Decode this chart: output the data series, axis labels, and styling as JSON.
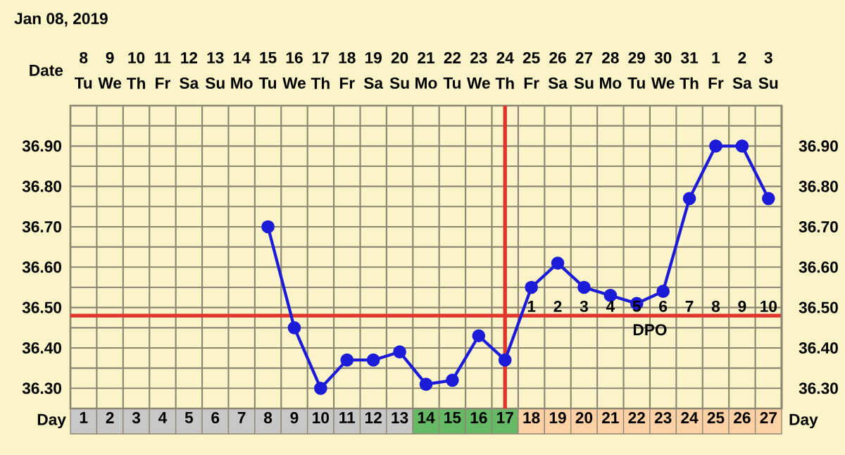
{
  "chart_data": {
    "type": "line",
    "title": "Jan 08, 2019",
    "series": [
      {
        "color": "#1c1cd8",
        "x": [
          8,
          9,
          10,
          11,
          12,
          13,
          14,
          15,
          16,
          17,
          18,
          19,
          20,
          21,
          22,
          23,
          24,
          25,
          26,
          27
        ],
        "values": [
          36.7,
          36.45,
          36.3,
          36.37,
          36.37,
          36.39,
          36.31,
          36.32,
          36.43,
          36.37,
          36.55,
          36.61,
          36.55,
          36.53,
          36.51,
          36.54,
          36.77,
          36.9,
          36.9,
          36.77
        ]
      }
    ],
    "marker": "circle",
    "line_style": "solid",
    "grid": true,
    "xlim": [
      0.5,
      27.5
    ],
    "xticks": [
      1,
      2,
      3,
      4,
      5,
      6,
      7,
      8,
      9,
      10,
      11,
      12,
      13,
      14,
      15,
      16,
      17,
      18,
      19,
      20,
      21,
      22,
      23,
      24,
      25,
      26,
      27
    ],
    "ylim": [
      36.25,
      37.0
    ],
    "yticks": [
      {
        "value": 36.25,
        "label": null
      },
      {
        "value": 36.3,
        "label": "36.30"
      },
      {
        "value": 36.35,
        "label": null
      },
      {
        "value": 36.4,
        "label": "36.40"
      },
      {
        "value": 36.45,
        "label": null
      },
      {
        "value": 36.5,
        "label": "36.50"
      },
      {
        "value": 36.55,
        "label": null
      },
      {
        "value": 36.6,
        "label": "36.60"
      },
      {
        "value": 36.65,
        "label": null
      },
      {
        "value": 36.7,
        "label": "36.70"
      },
      {
        "value": 36.75,
        "label": null
      },
      {
        "value": 36.8,
        "label": "36.80"
      },
      {
        "value": 36.85,
        "label": null
      },
      {
        "value": 36.9,
        "label": "36.90"
      },
      {
        "value": 36.95,
        "label": null
      },
      {
        "value": 37.0,
        "label": null
      }
    ],
    "y2lim": [
      36.25,
      37.0
    ],
    "y2ticks": [
      {
        "value": 36.25,
        "label": null
      },
      {
        "value": 36.3,
        "label": "36.30"
      },
      {
        "value": 36.35,
        "label": null
      },
      {
        "value": 36.4,
        "label": "36.40"
      },
      {
        "value": 36.45,
        "label": null
      },
      {
        "value": 36.5,
        "label": "36.50"
      },
      {
        "value": 36.55,
        "label": null
      },
      {
        "value": 36.6,
        "label": "36.60"
      },
      {
        "value": 36.65,
        "label": null
      },
      {
        "value": 36.7,
        "label": "36.70"
      },
      {
        "value": 36.75,
        "label": null
      },
      {
        "value": 36.8,
        "label": "36.80"
      },
      {
        "value": 36.85,
        "label": null
      },
      {
        "value": 36.9,
        "label": "36.90"
      },
      {
        "value": 36.95,
        "label": null
      },
      {
        "value": 37.0,
        "label": null
      }
    ],
    "ref_lines": [
      {
        "axis": "y",
        "value": 36.48,
        "color": "#e0352b"
      },
      {
        "axis": "x",
        "value": 17,
        "color": "#e0352b"
      }
    ],
    "annotations": [
      "Date",
      "Day",
      "Day",
      "DPO",
      "8",
      "9",
      "10",
      "11",
      "12",
      "13",
      "14",
      "15",
      "16",
      "17",
      "18",
      "19",
      "20",
      "21",
      "22",
      "23",
      "24",
      "25",
      "26",
      "27",
      "28",
      "29",
      "30",
      "31",
      "1",
      "2",
      "3",
      "Tu",
      "We",
      "Th",
      "Fr",
      "Sa",
      "Su",
      "Mo",
      "Tu",
      "We",
      "Th",
      "Fr",
      "Sa",
      "Su",
      "Mo",
      "Tu",
      "We",
      "Th",
      "Fr",
      "Sa",
      "Su",
      "Mo",
      "Tu",
      "We",
      "Th",
      "Fr",
      "Sa",
      "Su",
      "1",
      "2",
      "3",
      "4",
      "5",
      "6",
      "7",
      "8",
      "9",
      "10"
    ]
  }
}
